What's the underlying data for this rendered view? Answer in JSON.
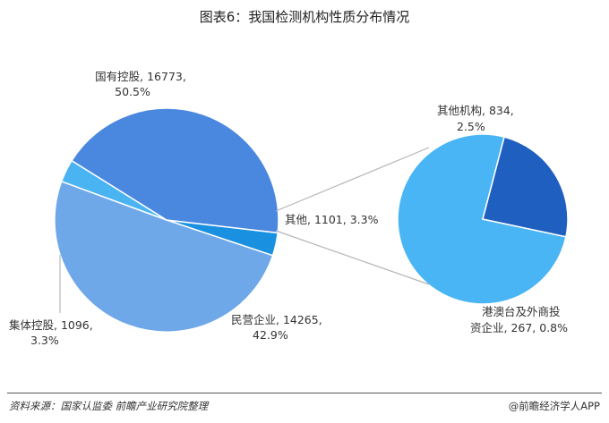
{
  "page_title": "图表6：我国检测机构性质分布情况",
  "chart_data": [
    {
      "type": "pie",
      "slices": [
        {
          "label": "国有控股",
          "value": 16773,
          "percent": "50.5%",
          "color": "#6fa8e8"
        },
        {
          "label": "其他",
          "value": 1101,
          "percent": "3.3%",
          "color": "#1a91e0"
        },
        {
          "label": "民营企业",
          "value": 14265,
          "percent": "42.9%",
          "color": "#4a88e0"
        },
        {
          "label": "集体控股",
          "value": 1096,
          "percent": "3.3%",
          "color": "#4ab3f2"
        }
      ],
      "labels": {
        "guoyou_1": "国有控股, 16773,",
        "guoyou_2": "50.5%",
        "qita": "其他, 1101, 3.3%",
        "minying_1": "民营企业, 14265,",
        "minying_2": "42.9%",
        "jiti_1": "集体控股, 1096,",
        "jiti_2": "3.3%"
      }
    },
    {
      "type": "pie",
      "slices": [
        {
          "label": "其他机构",
          "value": 834,
          "percent": "2.5%",
          "color": "#4ab5f5"
        },
        {
          "label": "港澳台及外商投资企业",
          "value": 267,
          "percent": "0.8%",
          "color": "#1f5fbf"
        }
      ],
      "labels": {
        "qitajigou_1": "其他机构, 834,",
        "qitajigou_2": "2.5%",
        "gangao_1": "港澳台及外商投",
        "gangao_2": "资企业, 267, 0.8%"
      }
    }
  ],
  "footer": {
    "source": "资料来源：国家认监委 前瞻产业研究院整理",
    "brand": "@前瞻经济学人APP"
  }
}
